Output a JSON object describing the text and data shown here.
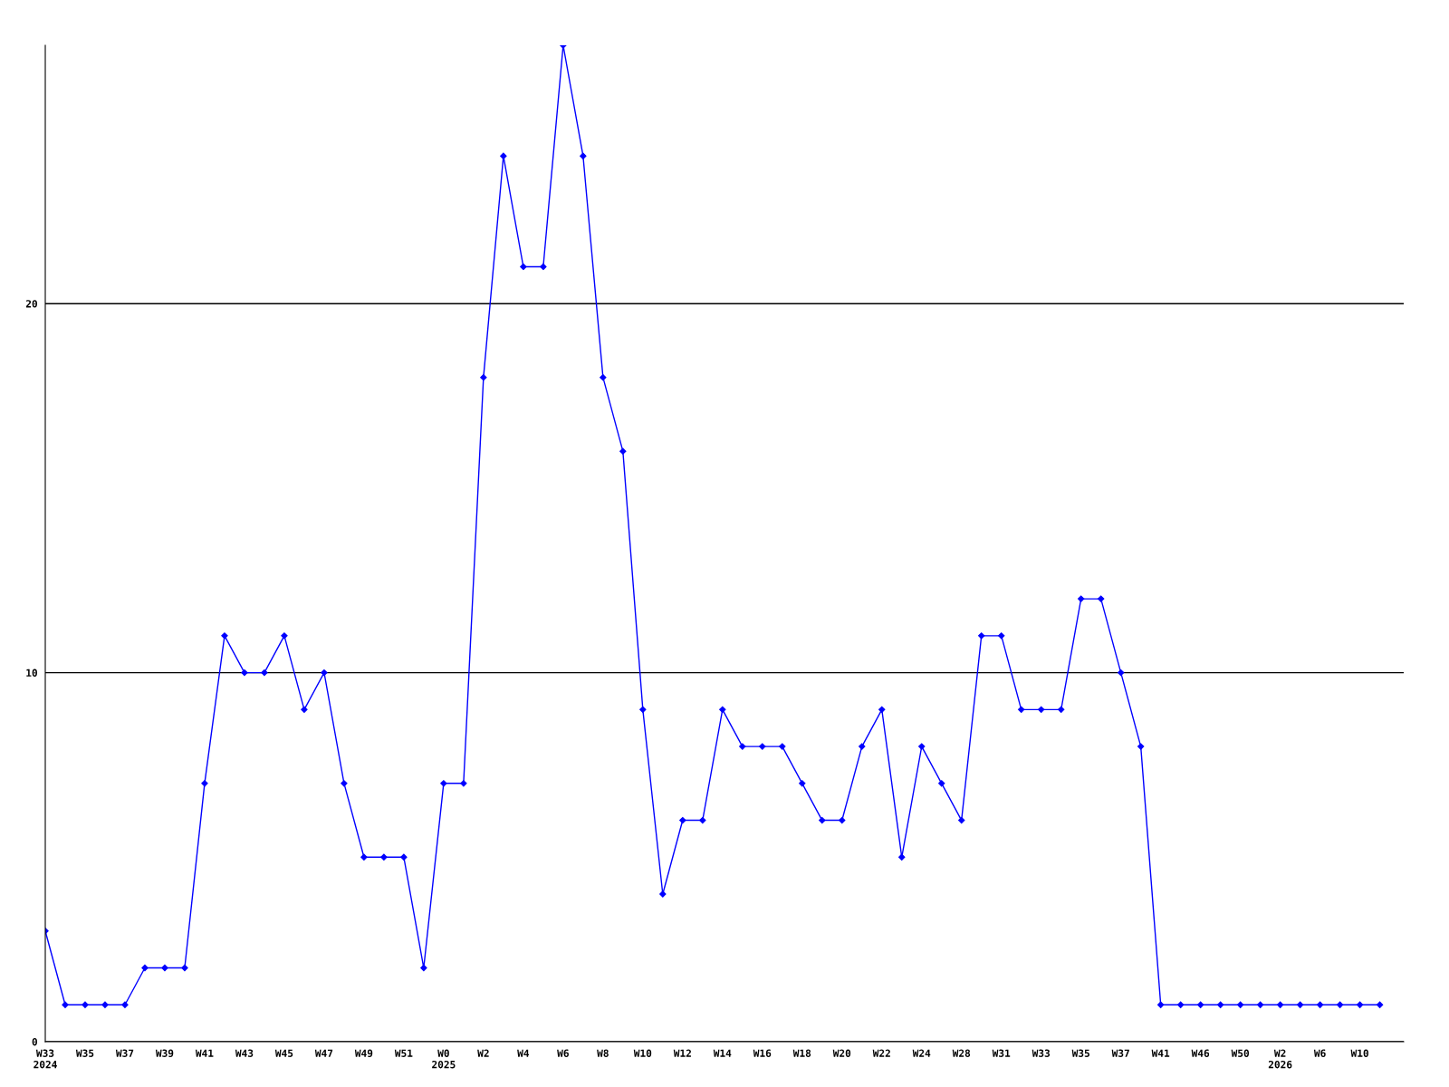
{
  "chart_data": {
    "type": "line",
    "categories": [
      "W33\n2024",
      null,
      "W35",
      null,
      "W37",
      null,
      "W39",
      null,
      "W41",
      null,
      "W43",
      null,
      "W45",
      null,
      "W47",
      null,
      "W49",
      null,
      "W51",
      null,
      "W0\n2025",
      null,
      "W2",
      null,
      "W4",
      null,
      "W6",
      null,
      "W8",
      null,
      "W10",
      null,
      "W12",
      null,
      "W14",
      null,
      "W16",
      null,
      "W18",
      null,
      "W20",
      null,
      "W22",
      null,
      "W24",
      null,
      "W28",
      null,
      "W31",
      null,
      "W33",
      null,
      "W35",
      null,
      "W37",
      null,
      "W41",
      null,
      "W46",
      null,
      "W50",
      null,
      "W2\n2026",
      null,
      "W6",
      null,
      "W10",
      null
    ],
    "series": [
      {
        "color": "#0000ff",
        "values": [
          3,
          1,
          1,
          1,
          1,
          2,
          2,
          2,
          7,
          11,
          10,
          10,
          11,
          9,
          10,
          7,
          5,
          5,
          5,
          2,
          7,
          7,
          18,
          24,
          21,
          21,
          27,
          24,
          18,
          16,
          9,
          4,
          6,
          6,
          9,
          8,
          8,
          8,
          7,
          6,
          6,
          8,
          9,
          5,
          8,
          7,
          6,
          11,
          11,
          9,
          9,
          9,
          12,
          12,
          10,
          8,
          1,
          1,
          1,
          1,
          1,
          1,
          1,
          1,
          1,
          1,
          1,
          1
        ]
      }
    ],
    "ylim": [
      0,
      27
    ],
    "yticks": [
      0,
      10,
      20
    ],
    "grid": "y",
    "marker": "diamond",
    "line_style": "solid"
  }
}
